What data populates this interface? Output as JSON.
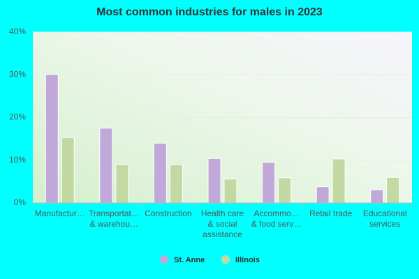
{
  "chart_data": {
    "type": "bar",
    "title": "Most common industries for males in 2023",
    "categories": [
      "Manufactur…",
      "Transportat…\n& warehou…",
      "Construction",
      "Health care\n& social\nassistance",
      "Accommo…\n& food serv…",
      "Retail trade",
      "Educational\nservices"
    ],
    "series": [
      {
        "name": "St. Anne",
        "color": "#c0a8d8",
        "values": [
          30.1,
          17.5,
          14.0,
          10.4,
          9.5,
          3.8,
          3.1
        ]
      },
      {
        "name": "Illinois",
        "color": "#c4d8a4",
        "values": [
          15.3,
          9.0,
          9.0,
          5.6,
          5.9,
          10.3,
          6.0
        ]
      }
    ],
    "ylim": [
      0,
      40
    ],
    "yticks": [
      {
        "value": 0,
        "label": "0%"
      },
      {
        "value": 10,
        "label": "10%"
      },
      {
        "value": 20,
        "label": "20%"
      },
      {
        "value": 30,
        "label": "30%"
      },
      {
        "value": 40,
        "label": "40%"
      }
    ],
    "grid": true
  }
}
